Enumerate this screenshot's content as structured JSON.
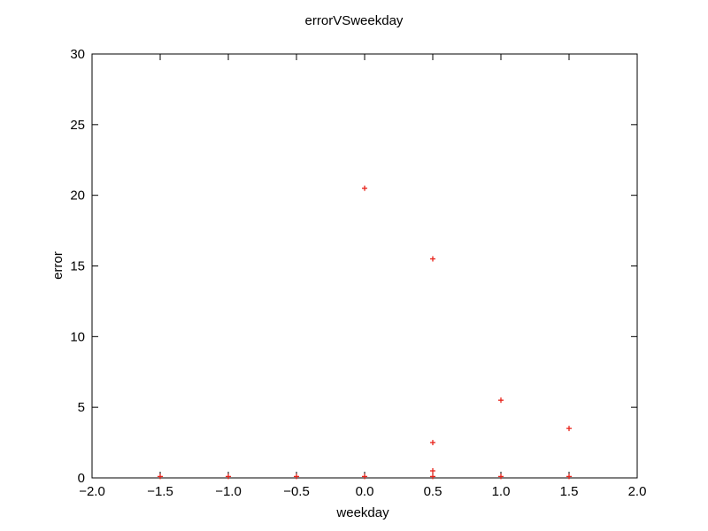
{
  "chart_data": {
    "type": "scatter",
    "title": "errorVSweekday",
    "xlabel": "weekday",
    "ylabel": "error",
    "xlim": [
      -2.0,
      2.0
    ],
    "ylim": [
      0,
      30
    ],
    "xticks": [
      "−2.0",
      "−1.5",
      "−1.0",
      "−0.5",
      "0.0",
      "0.5",
      "1.0",
      "1.5",
      "2.0"
    ],
    "xtick_values": [
      -2.0,
      -1.5,
      -1.0,
      -0.5,
      0.0,
      0.5,
      1.0,
      1.5,
      2.0
    ],
    "yticks": [
      "0",
      "5",
      "10",
      "15",
      "20",
      "25",
      "30"
    ],
    "ytick_values": [
      0,
      5,
      10,
      15,
      20,
      25,
      30
    ],
    "grid": false,
    "legend": "none",
    "marker": "plus",
    "marker_color": "#e8221a",
    "series": [
      {
        "points": [
          {
            "x": -1.5,
            "y": 0.1
          },
          {
            "x": -1.0,
            "y": 0.1
          },
          {
            "x": -0.5,
            "y": 0.1
          },
          {
            "x": 0.0,
            "y": 0.1
          },
          {
            "x": 0.0,
            "y": 20.5
          },
          {
            "x": 0.5,
            "y": 15.5
          },
          {
            "x": 0.5,
            "y": 2.5
          },
          {
            "x": 0.5,
            "y": 0.5
          },
          {
            "x": 0.5,
            "y": 0.1
          },
          {
            "x": 1.0,
            "y": 5.5
          },
          {
            "x": 1.0,
            "y": 0.1
          },
          {
            "x": 1.5,
            "y": 3.5
          },
          {
            "x": 1.5,
            "y": 0.1
          }
        ]
      }
    ]
  }
}
